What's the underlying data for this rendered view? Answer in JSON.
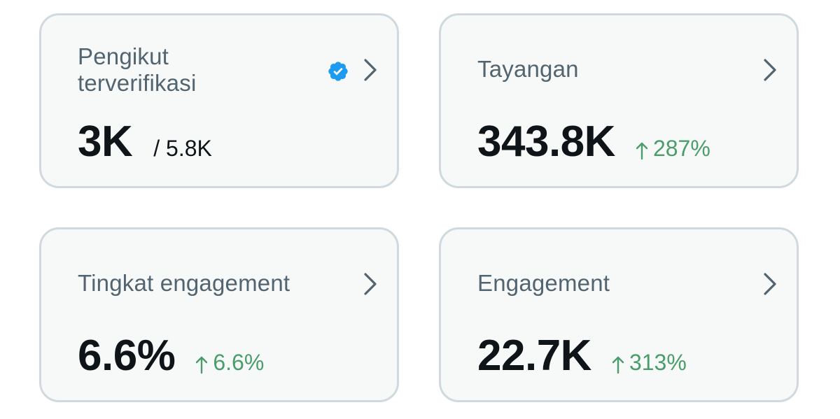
{
  "cards": [
    {
      "title": "Pengikut terverifikasi",
      "value": "3K",
      "secondary": "/ 5.8K",
      "icon": "verified-badge-icon"
    },
    {
      "title": "Tayangan",
      "value": "343.8K",
      "change": "287%",
      "change_direction": "up"
    },
    {
      "title": "Tingkat engagement",
      "value": "6.6%",
      "change": "6.6%",
      "change_direction": "up"
    },
    {
      "title": "Engagement",
      "value": "22.7K",
      "change": "313%",
      "change_direction": "up"
    }
  ],
  "colors": {
    "card_background": "#f7f9f9",
    "card_border": "#cfd9de",
    "title_text": "#536471",
    "value_text": "#0f1419",
    "positive_change": "#4a9d6a",
    "verified_blue": "#1d9bf0",
    "chevron": "#536471"
  }
}
